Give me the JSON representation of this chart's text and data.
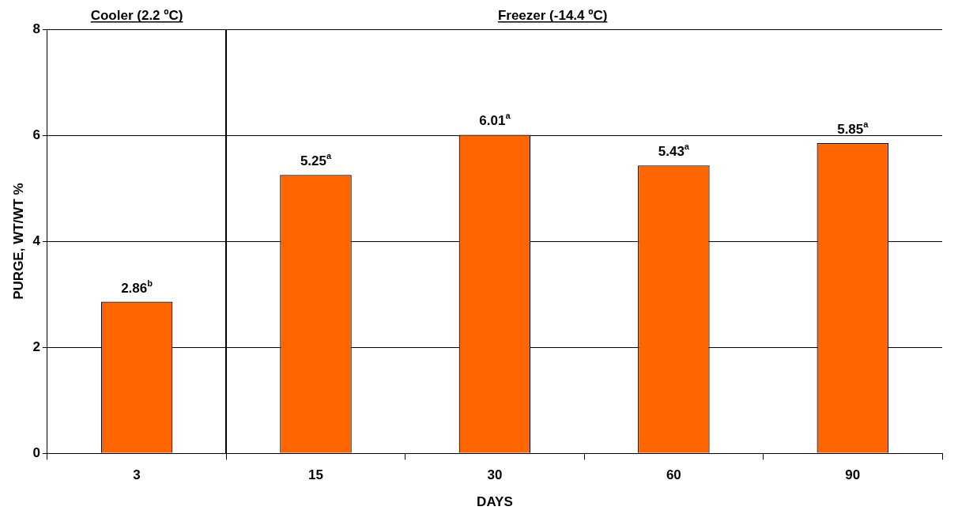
{
  "chart_data": {
    "type": "bar",
    "xlabel": "DAYS",
    "ylabel": "PURGE, WT/WT %",
    "categories": [
      "3",
      "15",
      "30",
      "60",
      "90"
    ],
    "values": [
      2.86,
      5.25,
      6.01,
      5.43,
      5.85
    ],
    "value_labels": [
      "2.86$^{b}$",
      "5.25$^{a}$",
      "6.01$^{a}$",
      "5.43$^{a}$",
      "5.85$^{a}$"
    ],
    "color": "#ff6600",
    "ylim": [
      0,
      8
    ],
    "yticks": [
      0,
      2,
      4,
      6,
      8
    ],
    "grid": "y",
    "legend": false,
    "annotations": [
      "Cooler (2.2 ºC)",
      "Freezer (-14.4 ºC)"
    ]
  }
}
